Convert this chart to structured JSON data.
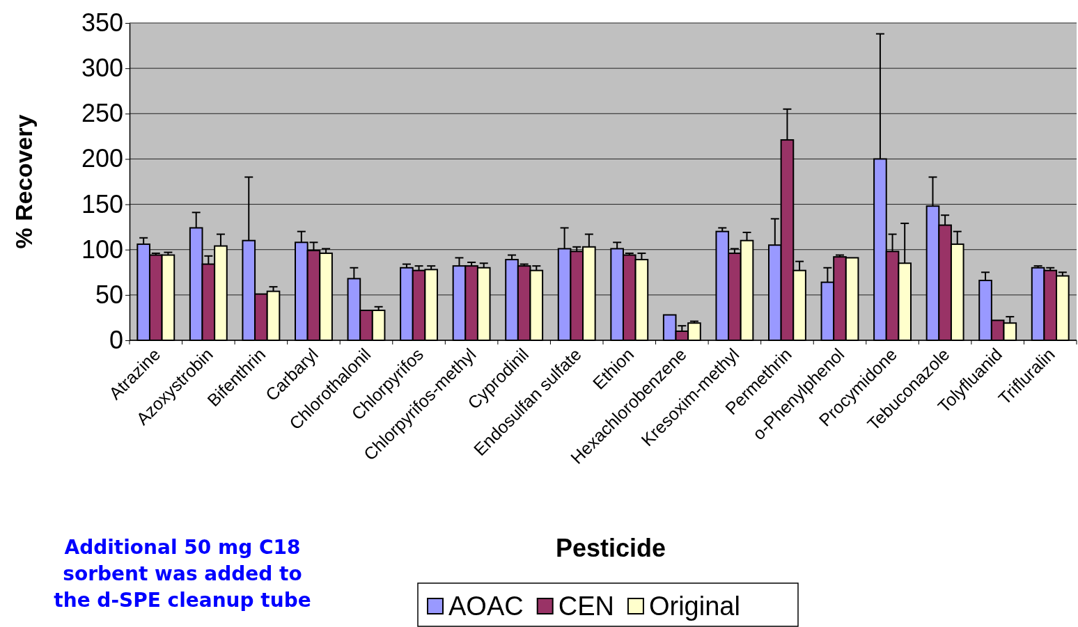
{
  "chart_data": {
    "type": "bar",
    "xlabel": "Pesticide",
    "ylabel": "% Recovery",
    "annotations": [
      "Additional 50 mg C18 sorbent was added to the d-SPE cleanup tube"
    ],
    "categories": [
      "Atrazine",
      "Azoxystrobin",
      "Bifenthrin",
      "Carbaryl",
      "Chlorothalonil",
      "Chlorpyrifos",
      "Chlorpyrifos-methyl",
      "Cyprodinil",
      "Endosulfan sulfate",
      "Ethion",
      "Hexachlorobenzene",
      "Kresoxim-methyl",
      "Permethrin",
      "o-Phenylphenol",
      "Procymidone",
      "Tebuconazole",
      "Tolyfluanid",
      "Trifluralin"
    ],
    "series": [
      {
        "name": "AOAC",
        "color": "#9999ff",
        "values": [
          106,
          124,
          110,
          108,
          68,
          80,
          82,
          89,
          101,
          101,
          28,
          120,
          105,
          64,
          200,
          148,
          66,
          80
        ],
        "errors": [
          [
            106,
            113
          ],
          [
            124,
            141
          ],
          [
            110,
            180
          ],
          [
            108,
            120
          ],
          [
            68,
            80
          ],
          [
            80,
            84
          ],
          [
            82,
            91
          ],
          [
            89,
            94
          ],
          [
            101,
            124
          ],
          [
            101,
            108
          ],
          null,
          [
            120,
            124
          ],
          [
            105,
            134
          ],
          [
            64,
            80
          ],
          [
            200,
            338
          ],
          [
            148,
            180
          ],
          [
            66,
            75
          ],
          [
            80,
            82
          ]
        ]
      },
      {
        "name": "CEN",
        "color": "#993366",
        "values": [
          94,
          84,
          51,
          99,
          33,
          77,
          82,
          82,
          98,
          94,
          10,
          96,
          221,
          92,
          98,
          127,
          22,
          77
        ],
        "errors": [
          [
            94,
            96
          ],
          [
            84,
            93
          ],
          null,
          [
            99,
            108
          ],
          null,
          [
            77,
            82
          ],
          [
            82,
            86
          ],
          [
            82,
            84
          ],
          [
            98,
            103
          ],
          [
            94,
            96
          ],
          [
            10,
            16
          ],
          [
            96,
            101
          ],
          [
            221,
            255
          ],
          [
            92,
            94
          ],
          [
            98,
            117
          ],
          [
            127,
            138
          ],
          null,
          [
            77,
            80
          ]
        ]
      },
      {
        "name": "Original",
        "color": "#ffffcc",
        "values": [
          94,
          104,
          54,
          96,
          33,
          78,
          80,
          77,
          103,
          89,
          19,
          110,
          77,
          91,
          85,
          106,
          19,
          71
        ],
        "errors": [
          [
            94,
            97
          ],
          [
            104,
            117
          ],
          [
            54,
            59
          ],
          [
            96,
            101
          ],
          [
            33,
            37
          ],
          [
            78,
            82
          ],
          [
            80,
            85
          ],
          [
            77,
            82
          ],
          [
            103,
            117
          ],
          [
            89,
            96
          ],
          [
            19,
            21
          ],
          [
            110,
            119
          ],
          [
            77,
            87
          ],
          null,
          [
            85,
            129
          ],
          [
            106,
            120
          ],
          [
            19,
            26
          ],
          [
            71,
            75
          ]
        ]
      }
    ],
    "ylim": [
      0,
      350
    ],
    "yticks": [
      0,
      50,
      100,
      150,
      200,
      250,
      300,
      350
    ],
    "grid": "y",
    "legend": "bottom"
  }
}
